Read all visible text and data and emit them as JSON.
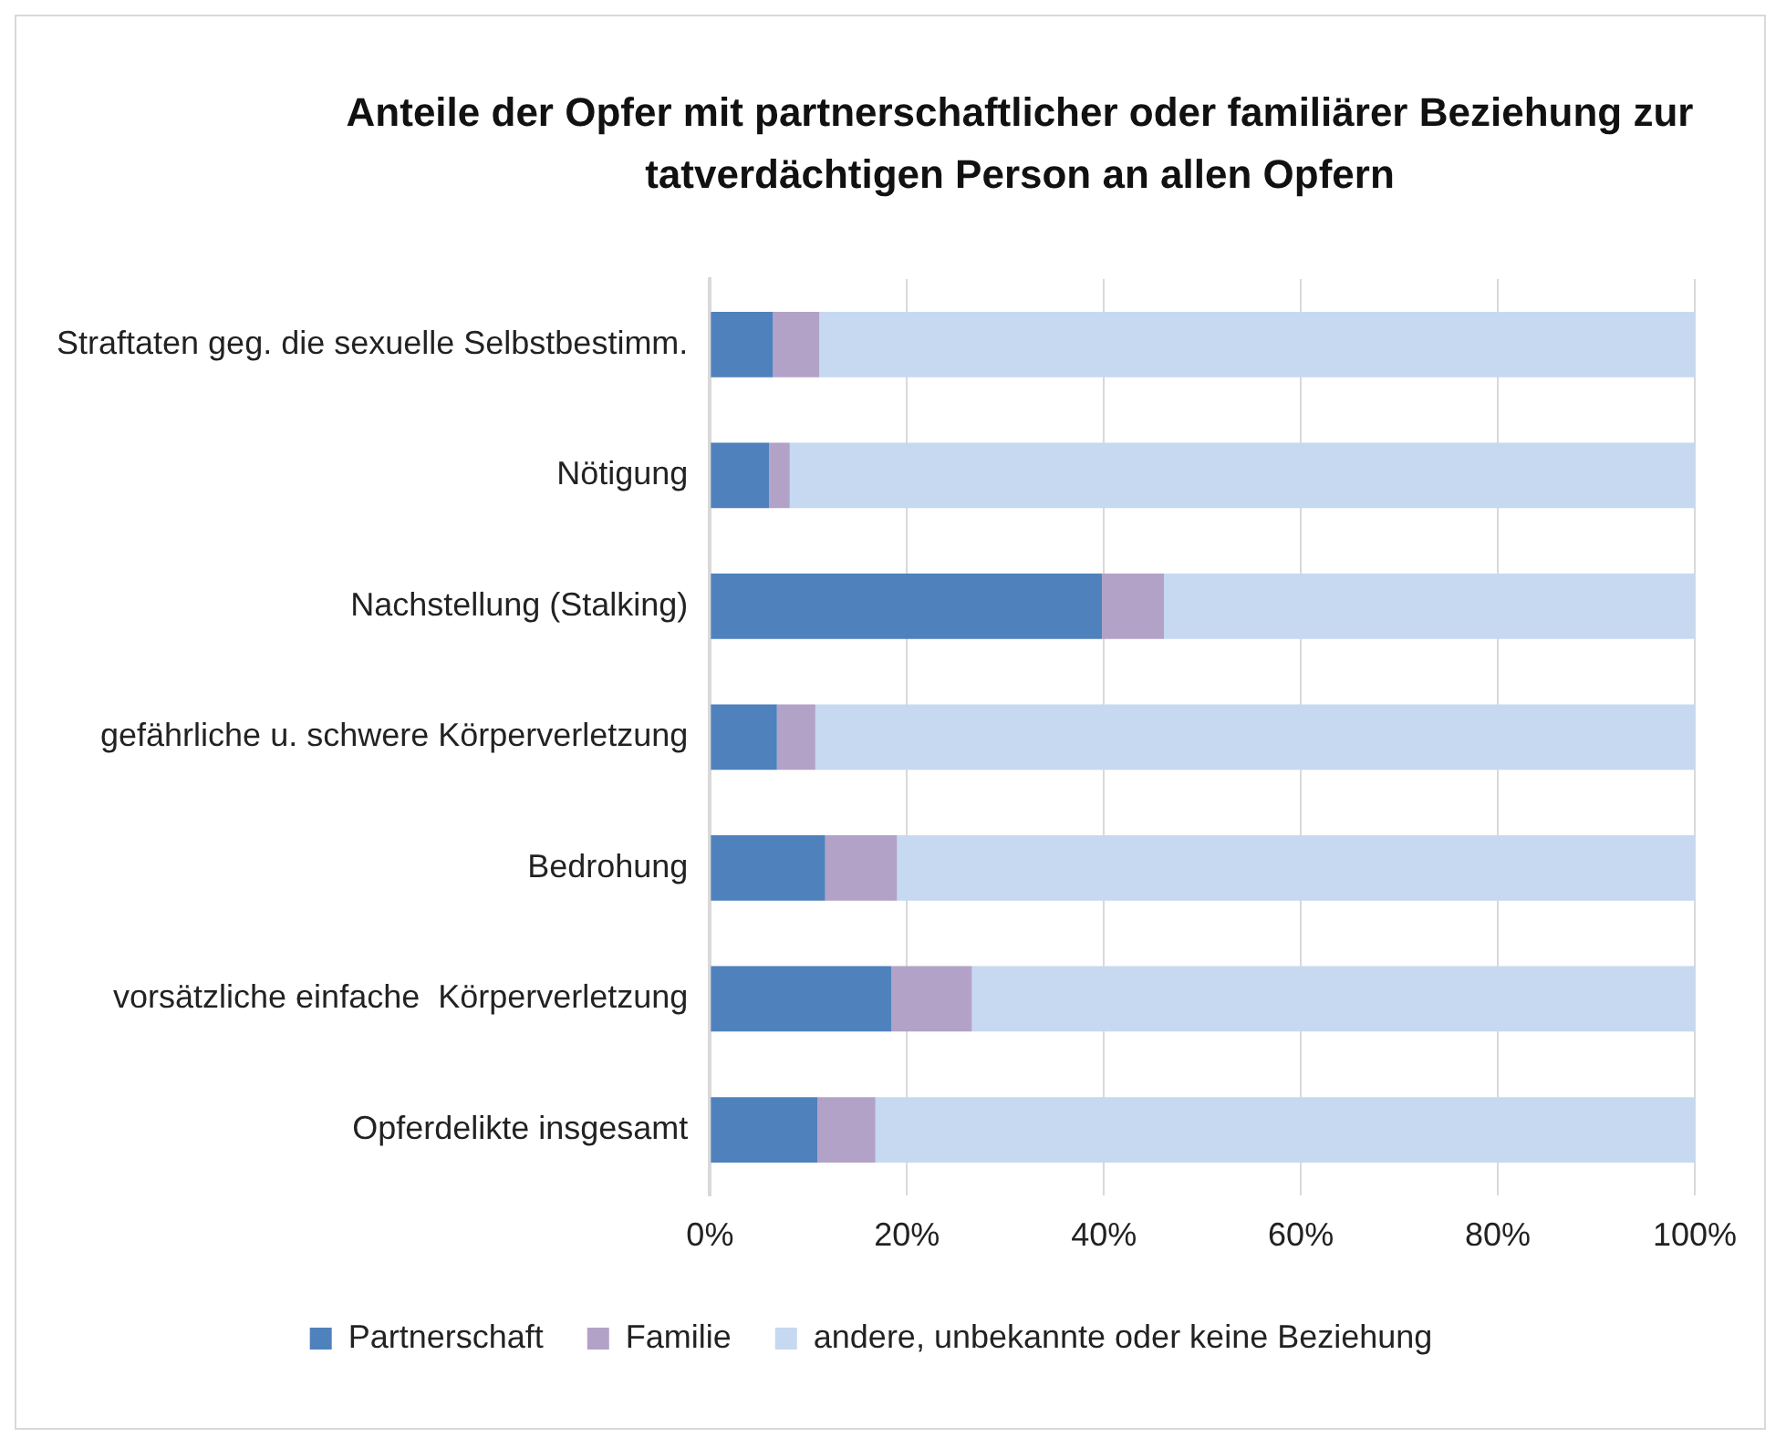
{
  "chart_data": {
    "type": "bar",
    "orientation": "horizontal",
    "stacked": true,
    "title": "Anteile der Opfer mit partnerschaftlicher oder familiärer Beziehung zur tatverdächtigen Person an allen Opfern",
    "categories": [
      "Straftaten geg. die sexuelle Selbstbestimm.",
      "Nötigung",
      "Nachstellung (Stalking)",
      "gefährliche u. schwere Körperverletzung",
      "Bedrohung",
      "vorsätzliche einfache  Körperverletzung",
      "Opferdelikte insgesamt"
    ],
    "series": [
      {
        "name": "Partnerschaft",
        "color": "#4f81bd",
        "values": [
          6.4,
          6.0,
          39.8,
          6.8,
          11.7,
          18.4,
          10.9
        ]
      },
      {
        "name": "Familie",
        "color": "#b3a2c7",
        "values": [
          4.7,
          2.1,
          6.3,
          3.9,
          7.3,
          8.2,
          5.9
        ]
      },
      {
        "name": "andere, unbekannte oder keine Beziehung",
        "color": "#c6d9f1",
        "values": [
          88.9,
          91.9,
          53.9,
          89.3,
          81.0,
          73.4,
          83.2
        ]
      }
    ],
    "xlim": [
      0,
      100
    ],
    "xticks": [
      {
        "value": 0,
        "label": "0%"
      },
      {
        "value": 20,
        "label": "20%"
      },
      {
        "value": 40,
        "label": "40%"
      },
      {
        "value": 60,
        "label": "60%"
      },
      {
        "value": 80,
        "label": "80%"
      },
      {
        "value": 100,
        "label": "100%"
      }
    ],
    "grid": "x",
    "legend": "bottom"
  }
}
